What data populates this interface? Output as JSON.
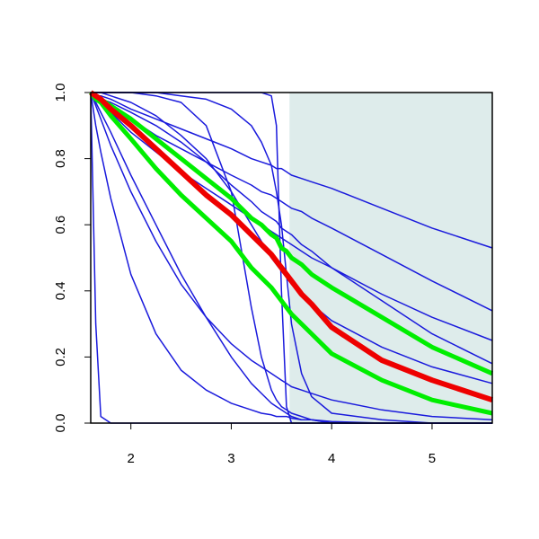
{
  "chart_data": {
    "type": "line",
    "xlim": [
      1.6,
      5.6
    ],
    "ylim": [
      0,
      1
    ],
    "xticks": [
      2,
      3,
      4,
      5
    ],
    "yticks": [
      {
        "value": 0,
        "label": "0.0"
      },
      {
        "value": 0.2,
        "label": "0.2"
      },
      {
        "value": 0.4,
        "label": "0.4"
      },
      {
        "value": 0.6,
        "label": "0.6"
      },
      {
        "value": 0.8,
        "label": "0.8"
      },
      {
        "value": 1,
        "label": "1.0"
      }
    ],
    "shaded_region": {
      "xmin": 3.58,
      "xmax": 5.6,
      "color": "#deeceb"
    },
    "x": [
      1.6,
      1.65,
      1.7,
      1.8,
      2.0,
      2.25,
      2.5,
      2.75,
      3.0,
      3.2,
      3.3,
      3.4,
      3.45,
      3.5,
      3.55,
      3.6,
      3.7,
      3.8,
      4.0,
      4.5,
      5.0,
      5.6
    ],
    "series": [
      {
        "color": "#1a1adc",
        "line_width": 1.5,
        "values": [
          1,
          0.99,
          0.99,
          0.98,
          0.95,
          0.92,
          0.89,
          0.86,
          0.83,
          0.8,
          0.79,
          0.78,
          0.77,
          0.77,
          0.76,
          0.75,
          0.74,
          0.73,
          0.71,
          0.65,
          0.59,
          0.53
        ]
      },
      {
        "color": "#1a1adc",
        "line_width": 1.5,
        "values": [
          1,
          0.99,
          0.98,
          0.96,
          0.92,
          0.87,
          0.83,
          0.79,
          0.75,
          0.72,
          0.7,
          0.69,
          0.68,
          0.67,
          0.66,
          0.65,
          0.64,
          0.62,
          0.59,
          0.51,
          0.43,
          0.34
        ]
      },
      {
        "color": "#1a1adc",
        "line_width": 1.5,
        "values": [
          1,
          0.98,
          0.97,
          0.94,
          0.88,
          0.82,
          0.76,
          0.71,
          0.66,
          0.62,
          0.6,
          0.58,
          0.57,
          0.56,
          0.55,
          0.54,
          0.52,
          0.5,
          0.47,
          0.39,
          0.32,
          0.25
        ]
      },
      {
        "color": "#1a1adc",
        "line_width": 1.5,
        "values": [
          1,
          0.99,
          0.98,
          0.97,
          0.94,
          0.9,
          0.85,
          0.79,
          0.72,
          0.67,
          0.64,
          0.62,
          0.61,
          0.59,
          0.58,
          0.57,
          0.54,
          0.52,
          0.47,
          0.37,
          0.27,
          0.18
        ]
      },
      {
        "color": "#1a1adc",
        "line_width": 1.5,
        "values": [
          1,
          0.3,
          0.02,
          0,
          0,
          0,
          0,
          0,
          0,
          0,
          0,
          0,
          0,
          0,
          0,
          0,
          0,
          0,
          0,
          0,
          0,
          0
        ]
      },
      {
        "color": "#1a1adc",
        "line_width": 1.5,
        "values": [
          1,
          0.9,
          0.82,
          0.68,
          0.45,
          0.27,
          0.16,
          0.1,
          0.06,
          0.04,
          0.03,
          0.025,
          0.02,
          0.02,
          0.02,
          0.015,
          0.01,
          0.01,
          0.005,
          0,
          0,
          0
        ]
      },
      {
        "color": "#1a1adc",
        "line_width": 1.5,
        "values": [
          1,
          0.96,
          0.92,
          0.84,
          0.7,
          0.55,
          0.42,
          0.32,
          0.24,
          0.19,
          0.17,
          0.15,
          0.14,
          0.13,
          0.12,
          0.11,
          0.1,
          0.09,
          0.07,
          0.04,
          0.02,
          0.01
        ]
      },
      {
        "color": "#1a1adc",
        "line_width": 1.5,
        "values": [
          1,
          0.97,
          0.94,
          0.88,
          0.75,
          0.6,
          0.45,
          0.32,
          0.2,
          0.12,
          0.09,
          0.06,
          0.05,
          0.04,
          0.03,
          0.02,
          0.01,
          0.01,
          0,
          0,
          0,
          0
        ]
      },
      {
        "color": "#1a1adc",
        "line_width": 1.5,
        "values": [
          1,
          1,
          1,
          1,
          1,
          1,
          1,
          1,
          1,
          1,
          1,
          0.99,
          0.9,
          0.4,
          0.05,
          0,
          0,
          0,
          0,
          0,
          0,
          0
        ]
      },
      {
        "color": "#1a1adc",
        "line_width": 1.5,
        "values": [
          1,
          1,
          1,
          1,
          1,
          0.99,
          0.97,
          0.9,
          0.7,
          0.35,
          0.2,
          0.1,
          0.07,
          0.05,
          0.04,
          0.03,
          0.02,
          0.01,
          0,
          0,
          0,
          0
        ]
      },
      {
        "color": "#1a1adc",
        "line_width": 1.5,
        "values": [
          1,
          1,
          1,
          1,
          1,
          1,
          0.99,
          0.98,
          0.95,
          0.9,
          0.85,
          0.78,
          0.7,
          0.6,
          0.45,
          0.3,
          0.15,
          0.08,
          0.03,
          0.01,
          0,
          0
        ]
      },
      {
        "color": "#1a1adc",
        "line_width": 1.5,
        "values": [
          1,
          1,
          1,
          0.99,
          0.97,
          0.93,
          0.87,
          0.8,
          0.7,
          0.6,
          0.55,
          0.5,
          0.48,
          0.46,
          0.44,
          0.42,
          0.39,
          0.36,
          0.31,
          0.23,
          0.17,
          0.12
        ]
      },
      {
        "color": "#00ee00",
        "line_width": 5,
        "values": [
          1,
          0.99,
          0.98,
          0.96,
          0.92,
          0.86,
          0.8,
          0.74,
          0.68,
          0.62,
          0.6,
          0.57,
          0.56,
          0.53,
          0.52,
          0.5,
          0.48,
          0.45,
          0.41,
          0.32,
          0.23,
          0.15
        ]
      },
      {
        "color": "#00ee00",
        "line_width": 5,
        "values": [
          1,
          0.98,
          0.97,
          0.93,
          0.86,
          0.77,
          0.69,
          0.62,
          0.55,
          0.47,
          0.44,
          0.41,
          0.39,
          0.37,
          0.35,
          0.33,
          0.3,
          0.27,
          0.21,
          0.13,
          0.07,
          0.03
        ]
      },
      {
        "color": "#ee0000",
        "line_width": 6,
        "values": [
          1,
          0.99,
          0.98,
          0.95,
          0.9,
          0.83,
          0.76,
          0.69,
          0.63,
          0.57,
          0.54,
          0.51,
          0.49,
          0.47,
          0.45,
          0.43,
          0.39,
          0.36,
          0.29,
          0.19,
          0.13,
          0.07
        ]
      }
    ]
  }
}
